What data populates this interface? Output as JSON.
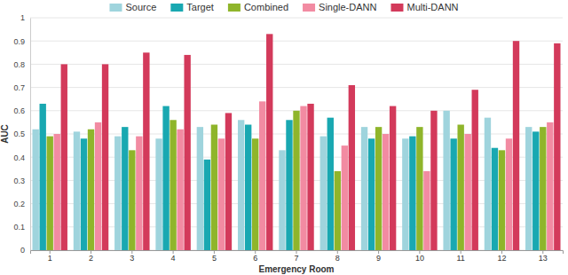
{
  "chart_data": {
    "type": "bar",
    "x_label": "Emergency Room",
    "y_label": "AUC",
    "categories": [
      "1",
      "2",
      "3",
      "4",
      "5",
      "6",
      "7",
      "8",
      "9",
      "10",
      "11",
      "12",
      "13"
    ],
    "series": [
      {
        "name": "Source",
        "color": "#9fd4dd",
        "values": [
          0.52,
          0.51,
          0.49,
          0.48,
          0.53,
          0.56,
          0.43,
          0.49,
          0.53,
          0.48,
          0.6,
          0.57,
          0.53
        ]
      },
      {
        "name": "Target",
        "color": "#19a8b1",
        "values": [
          0.63,
          0.48,
          0.53,
          0.62,
          0.39,
          0.54,
          0.56,
          0.57,
          0.48,
          0.49,
          0.48,
          0.44,
          0.51
        ]
      },
      {
        "name": "Combined",
        "color": "#8fb52b",
        "values": [
          0.49,
          0.52,
          0.43,
          0.56,
          0.54,
          0.48,
          0.6,
          0.34,
          0.53,
          0.53,
          0.54,
          0.43,
          0.53
        ]
      },
      {
        "name": "Single-DANN",
        "color": "#f28ba2",
        "values": [
          0.5,
          0.55,
          0.49,
          0.52,
          0.48,
          0.64,
          0.62,
          0.45,
          0.5,
          0.34,
          0.5,
          0.48,
          0.55
        ]
      },
      {
        "name": "Multi-DANN",
        "color": "#d33a5b",
        "values": [
          0.8,
          0.8,
          0.85,
          0.84,
          0.59,
          0.93,
          0.63,
          0.71,
          0.62,
          0.6,
          0.69,
          0.9,
          0.89
        ]
      }
    ],
    "ylim": [
      0,
      1
    ],
    "yticks": [
      0,
      0.1,
      0.2,
      0.3,
      0.4,
      0.5,
      0.6,
      0.7,
      0.8,
      0.9,
      1
    ],
    "grid": true,
    "legend": "top"
  }
}
